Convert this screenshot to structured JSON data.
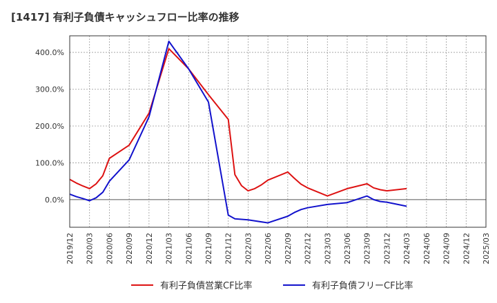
{
  "title": "[1417]  有利子負債キャッシュフロー比率の推移",
  "chart_data": {
    "type": "line",
    "title": "[1417]  有利子負債キャッシュフロー比率の推移",
    "xlabel": "",
    "ylabel": "",
    "x": [
      "2019/12",
      "2020/03",
      "2020/06",
      "2020/09",
      "2020/12",
      "2021/03",
      "2021/06",
      "2021/09",
      "2021/12",
      "2022/03",
      "2022/06",
      "2022/09",
      "2022/12",
      "2023/03",
      "2023/06",
      "2023/09",
      "2023/12",
      "2024/03",
      "2024/06",
      "2024/09",
      "2024/12",
      "2025/03"
    ],
    "y_ticks": [
      0,
      100,
      200,
      300,
      400
    ],
    "y_tick_labels": [
      "0.0%",
      "100.0%",
      "200.0%",
      "300.0%",
      "400.0%"
    ],
    "ylim": [
      -75,
      445
    ],
    "grid": true,
    "legend_position": "bottom",
    "series": [
      {
        "name": "有利子負債営業CF比率",
        "color": "#dd1111",
        "points": [
          [
            "2019/12",
            55
          ],
          [
            "2020/01",
            45
          ],
          [
            "2020/02",
            37
          ],
          [
            "2020/03",
            30
          ],
          [
            "2020/04",
            43
          ],
          [
            "2020/05",
            65
          ],
          [
            "2020/06",
            112
          ],
          [
            "2020/09",
            148
          ],
          [
            "2020/12",
            235
          ],
          [
            "2021/03",
            410
          ],
          [
            "2021/06",
            355
          ],
          [
            "2021/09",
            285
          ],
          [
            "2021/12",
            218
          ],
          [
            "2022/01",
            68
          ],
          [
            "2022/02",
            38
          ],
          [
            "2022/03",
            24
          ],
          [
            "2022/04",
            30
          ],
          [
            "2022/05",
            40
          ],
          [
            "2022/06",
            53
          ],
          [
            "2022/09",
            75
          ],
          [
            "2022/10",
            58
          ],
          [
            "2022/11",
            42
          ],
          [
            "2022/12",
            32
          ],
          [
            "2023/03",
            10
          ],
          [
            "2023/06",
            30
          ],
          [
            "2023/09",
            43
          ],
          [
            "2023/10",
            32
          ],
          [
            "2023/11",
            27
          ],
          [
            "2023/12",
            24
          ],
          [
            "2024/03",
            30
          ]
        ]
      },
      {
        "name": "有利子負債フリーCF比率",
        "color": "#1111cc",
        "points": [
          [
            "2019/12",
            15
          ],
          [
            "2020/01",
            8
          ],
          [
            "2020/02",
            3
          ],
          [
            "2020/03",
            -3
          ],
          [
            "2020/04",
            5
          ],
          [
            "2020/05",
            20
          ],
          [
            "2020/06",
            50
          ],
          [
            "2020/09",
            108
          ],
          [
            "2020/12",
            225
          ],
          [
            "2021/03",
            430
          ],
          [
            "2021/06",
            355
          ],
          [
            "2021/09",
            265
          ],
          [
            "2021/12",
            -42
          ],
          [
            "2022/01",
            -52
          ],
          [
            "2022/03",
            -55
          ],
          [
            "2022/06",
            -63
          ],
          [
            "2022/09",
            -45
          ],
          [
            "2022/10",
            -35
          ],
          [
            "2022/11",
            -27
          ],
          [
            "2022/12",
            -22
          ],
          [
            "2023/03",
            -13
          ],
          [
            "2023/06",
            -8
          ],
          [
            "2023/09",
            10
          ],
          [
            "2023/10",
            0
          ],
          [
            "2023/11",
            -5
          ],
          [
            "2023/12",
            -7
          ],
          [
            "2024/03",
            -18
          ]
        ]
      }
    ]
  }
}
